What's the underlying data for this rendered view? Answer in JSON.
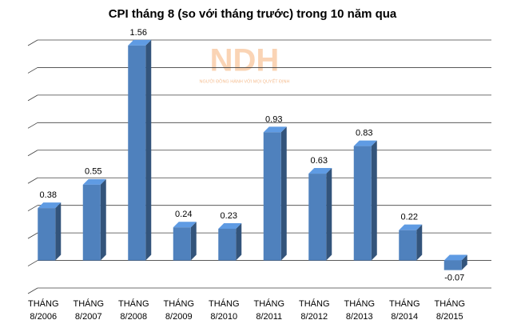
{
  "chart_data": {
    "type": "bar3d",
    "title": "CPI tháng 8 (so với tháng trước) trong 10 năm qua",
    "watermark": {
      "logo": "NDH",
      "slogan": "NGƯỜI ĐỒNG HÀNH VỚI MỌI QUYẾT ĐỊNH"
    },
    "categories": [
      [
        "THÁNG",
        "8/2006"
      ],
      [
        "THÁNG",
        "8/2007"
      ],
      [
        "THÁNG",
        "8/2008"
      ],
      [
        "THÁNG",
        "8/2009"
      ],
      [
        "THÁNG",
        "8/2010"
      ],
      [
        "THÁNG",
        "8/2011"
      ],
      [
        "THÁNG",
        "8/2012"
      ],
      [
        "THÁNG",
        "8/2013"
      ],
      [
        "THÁNG",
        "8/2014"
      ],
      [
        "THÁNG",
        "8/2015"
      ]
    ],
    "values": [
      0.38,
      0.55,
      1.56,
      0.24,
      0.23,
      0.93,
      0.63,
      0.83,
      0.22,
      -0.07
    ],
    "color": "#4f81bd",
    "ylim": [
      -0.2,
      1.6
    ],
    "yticks": [
      -0.2,
      0,
      0.2,
      0.4,
      0.6,
      0.8,
      1,
      1.2,
      1.4,
      1.6
    ],
    "grid": true
  }
}
